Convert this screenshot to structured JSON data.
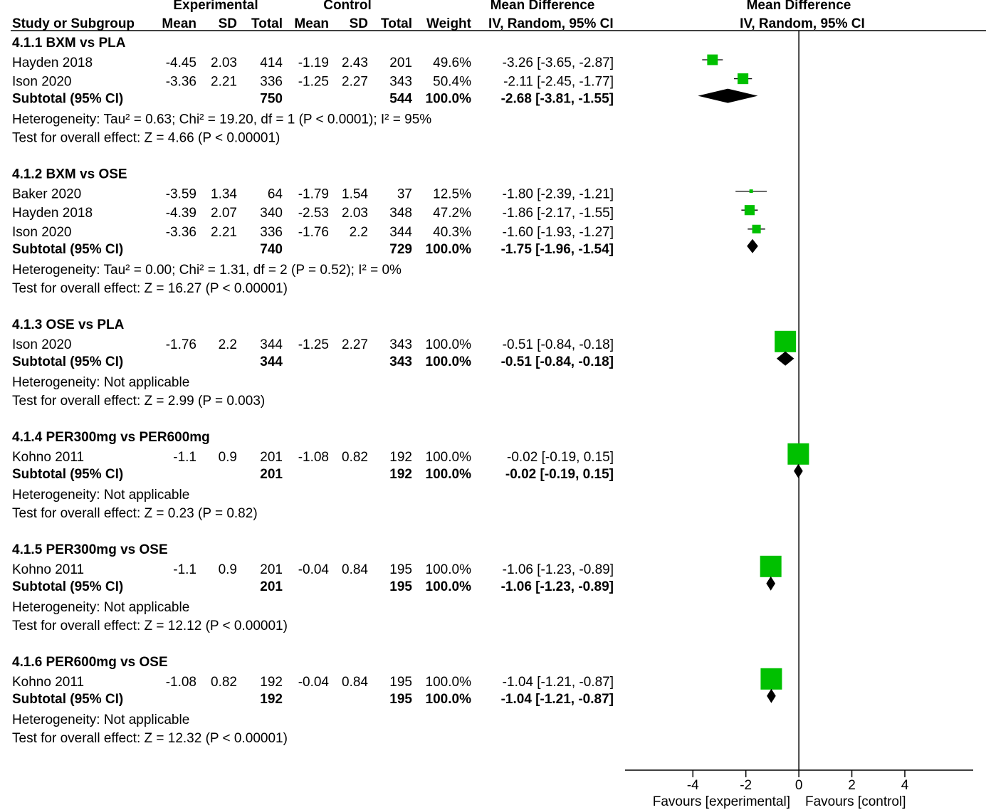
{
  "chart_data": {
    "type": "forest",
    "headers": {
      "experimental": "Experimental",
      "control": "Control",
      "mean_difference": "Mean Difference",
      "plot_title": "Mean Difference",
      "study": "Study or Subgroup",
      "exp_mean": "Mean",
      "exp_sd": "SD",
      "exp_total": "Total",
      "ctl_mean": "Mean",
      "ctl_sd": "SD",
      "ctl_total": "Total",
      "weight": "Weight",
      "method": "IV, Random, 95% CI",
      "plot_method": "IV, Random, 95% CI"
    },
    "groups": [
      {
        "title": "4.1.1 BXM vs PLA",
        "studies": [
          {
            "study": "Hayden 2018",
            "exp_mean": -4.45,
            "exp_sd": 2.03,
            "exp_total": 414,
            "ctl_mean": -1.19,
            "ctl_sd": 2.43,
            "ctl_total": 201,
            "weight": 49.6,
            "weight_label": "49.6%",
            "md": -3.26,
            "ci_low": -3.65,
            "ci_high": -2.87,
            "ci_label": "-3.26 [-3.65, -2.87]"
          },
          {
            "study": "Ison 2020",
            "exp_mean": -3.36,
            "exp_sd": 2.21,
            "exp_total": 336,
            "ctl_mean": -1.25,
            "ctl_sd": 2.27,
            "ctl_total": 343,
            "weight": 50.4,
            "weight_label": "50.4%",
            "md": -2.11,
            "ci_low": -2.45,
            "ci_high": -1.77,
            "ci_label": "-2.11 [-2.45, -1.77]"
          }
        ],
        "subtotal": {
          "name": "Subtotal (95% CI)",
          "exp_total": 750,
          "ctl_total": 544,
          "weight": 100,
          "weight_label": "100.0%",
          "md": -2.68,
          "ci_low": -3.81,
          "ci_high": -1.55,
          "ci_label": "-2.68 [-3.81, -1.55]"
        },
        "heterogeneity": "Heterogeneity: Tau² = 0.63; Chi² = 19.20, df = 1 (P < 0.0001); I² = 95%",
        "overall": "Test for overall effect: Z = 4.66 (P < 0.00001)"
      },
      {
        "title": "4.1.2 BXM vs OSE",
        "studies": [
          {
            "study": "Baker 2020",
            "exp_mean": -3.59,
            "exp_sd": 1.34,
            "exp_total": 64,
            "ctl_mean": -1.79,
            "ctl_sd": 1.54,
            "ctl_total": 37,
            "weight": 12.5,
            "weight_label": "12.5%",
            "md": -1.8,
            "ci_low": -2.39,
            "ci_high": -1.21,
            "ci_label": "-1.80 [-2.39, -1.21]"
          },
          {
            "study": "Hayden 2018",
            "exp_mean": -4.39,
            "exp_sd": 2.07,
            "exp_total": 340,
            "ctl_mean": -2.53,
            "ctl_sd": 2.03,
            "ctl_total": 348,
            "weight": 47.2,
            "weight_label": "47.2%",
            "md": -1.86,
            "ci_low": -2.17,
            "ci_high": -1.55,
            "ci_label": "-1.86 [-2.17, -1.55]"
          },
          {
            "study": "Ison 2020",
            "exp_mean": -3.36,
            "exp_sd": 2.21,
            "exp_total": 336,
            "ctl_mean": -1.76,
            "ctl_sd": 2.2,
            "ctl_total": 344,
            "weight": 40.3,
            "weight_label": "40.3%",
            "md": -1.6,
            "ci_low": -1.93,
            "ci_high": -1.27,
            "ci_label": "-1.60 [-1.93, -1.27]"
          }
        ],
        "subtotal": {
          "name": "Subtotal (95% CI)",
          "exp_total": 740,
          "ctl_total": 729,
          "weight": 100,
          "weight_label": "100.0%",
          "md": -1.75,
          "ci_low": -1.96,
          "ci_high": -1.54,
          "ci_label": "-1.75 [-1.96, -1.54]"
        },
        "heterogeneity": "Heterogeneity: Tau² = 0.00; Chi² = 1.31, df = 2 (P = 0.52); I² = 0%",
        "overall": "Test for overall effect: Z = 16.27 (P < 0.00001)"
      },
      {
        "title": "4.1.3 OSE vs PLA",
        "studies": [
          {
            "study": "Ison 2020",
            "exp_mean": -1.76,
            "exp_sd": 2.2,
            "exp_total": 344,
            "ctl_mean": -1.25,
            "ctl_sd": 2.27,
            "ctl_total": 343,
            "weight": 100,
            "weight_label": "100.0%",
            "md": -0.51,
            "ci_low": -0.84,
            "ci_high": -0.18,
            "ci_label": "-0.51 [-0.84, -0.18]"
          }
        ],
        "subtotal": {
          "name": "Subtotal (95% CI)",
          "exp_total": 344,
          "ctl_total": 343,
          "weight": 100,
          "weight_label": "100.0%",
          "md": -0.51,
          "ci_low": -0.84,
          "ci_high": -0.18,
          "ci_label": "-0.51 [-0.84, -0.18]"
        },
        "heterogeneity": "Heterogeneity: Not applicable",
        "overall": "Test for overall effect: Z = 2.99 (P = 0.003)"
      },
      {
        "title": "4.1.4 PER300mg vs PER600mg",
        "studies": [
          {
            "study": "Kohno 2011",
            "exp_mean": -1.1,
            "exp_sd": 0.9,
            "exp_total": 201,
            "ctl_mean": -1.08,
            "ctl_sd": 0.82,
            "ctl_total": 192,
            "weight": 100,
            "weight_label": "100.0%",
            "md": -0.02,
            "ci_low": -0.19,
            "ci_high": 0.15,
            "ci_label": "-0.02 [-0.19, 0.15]"
          }
        ],
        "subtotal": {
          "name": "Subtotal (95% CI)",
          "exp_total": 201,
          "ctl_total": 192,
          "weight": 100,
          "weight_label": "100.0%",
          "md": -0.02,
          "ci_low": -0.19,
          "ci_high": 0.15,
          "ci_label": "-0.02 [-0.19, 0.15]"
        },
        "heterogeneity": "Heterogeneity: Not applicable",
        "overall": "Test for overall effect: Z = 0.23 (P = 0.82)"
      },
      {
        "title": "4.1.5 PER300mg vs OSE",
        "studies": [
          {
            "study": "Kohno 2011",
            "exp_mean": -1.1,
            "exp_sd": 0.9,
            "exp_total": 201,
            "ctl_mean": -0.04,
            "ctl_sd": 0.84,
            "ctl_total": 195,
            "weight": 100,
            "weight_label": "100.0%",
            "md": -1.06,
            "ci_low": -1.23,
            "ci_high": -0.89,
            "ci_label": "-1.06 [-1.23, -0.89]"
          }
        ],
        "subtotal": {
          "name": "Subtotal (95% CI)",
          "exp_total": 201,
          "ctl_total": 195,
          "weight": 100,
          "weight_label": "100.0%",
          "md": -1.06,
          "ci_low": -1.23,
          "ci_high": -0.89,
          "ci_label": "-1.06 [-1.23, -0.89]"
        },
        "heterogeneity": "Heterogeneity: Not applicable",
        "overall": "Test for overall effect: Z = 12.12 (P < 0.00001)"
      },
      {
        "title": "4.1.6 PER600mg vs OSE",
        "studies": [
          {
            "study": "Kohno 2011",
            "exp_mean": -1.08,
            "exp_sd": 0.82,
            "exp_total": 192,
            "ctl_mean": -0.04,
            "ctl_sd": 0.84,
            "ctl_total": 195,
            "weight": 100,
            "weight_label": "100.0%",
            "md": -1.04,
            "ci_low": -1.21,
            "ci_high": -0.87,
            "ci_label": "-1.04 [-1.21, -0.87]"
          }
        ],
        "subtotal": {
          "name": "Subtotal (95% CI)",
          "exp_total": 192,
          "ctl_total": 195,
          "weight": 100,
          "weight_label": "100.0%",
          "md": -1.04,
          "ci_low": -1.21,
          "ci_high": -0.87,
          "ci_label": "-1.04 [-1.21, -0.87]"
        },
        "heterogeneity": "Heterogeneity: Not applicable",
        "overall": "Test for overall effect: Z = 12.32 (P < 0.00001)"
      }
    ],
    "xlim": [
      -6.56,
      6.58
    ],
    "xticks": [
      -4,
      -2,
      0,
      2,
      4
    ],
    "x_labels": [
      "Favours [experimental]",
      "Favours [control]"
    ],
    "color": "#00c000"
  }
}
